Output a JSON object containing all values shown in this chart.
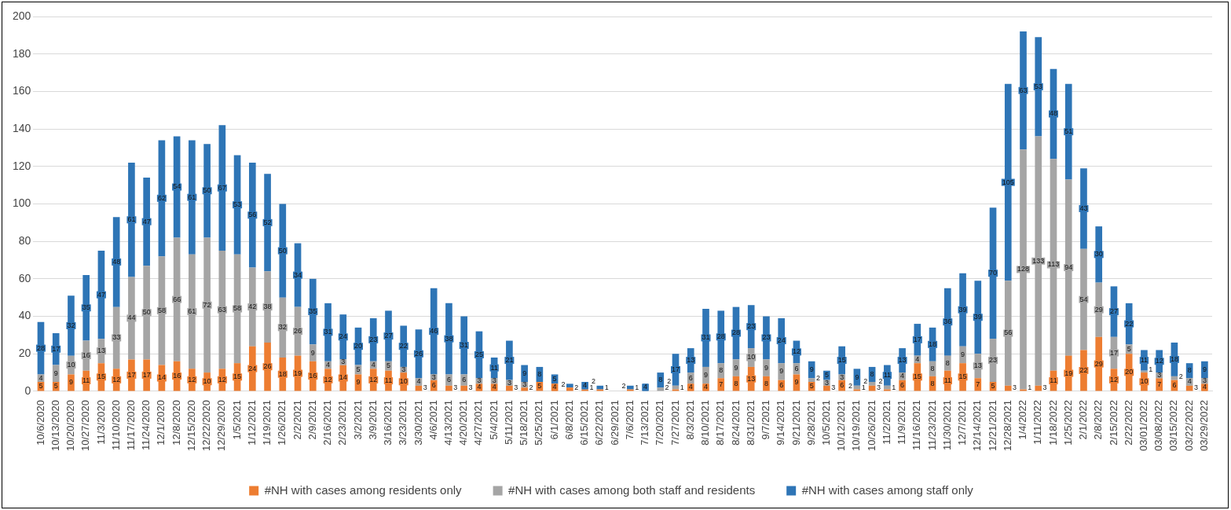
{
  "chart_data": {
    "type": "bar",
    "stacked": true,
    "categories": [
      "10/6/2020",
      "10/13/2020",
      "10/20/2020",
      "10/27/2020",
      "11/3/2020",
      "11/10/2020",
      "11/17/2020",
      "11/24/2020",
      "12/1/2020",
      "12/8/2020",
      "12/15/2020",
      "12/22/2020",
      "12/29/2020",
      "1/5/2021",
      "1/12/2021",
      "1/19/2021",
      "1/26/2021",
      "2/2/2021",
      "2/9/2021",
      "2/16/2021",
      "2/23/2021",
      "3/2/2021",
      "3/9/2021",
      "3/16/2021",
      "3/23/2021",
      "3/30/2021",
      "4/6/2021",
      "4/13/2021",
      "4/20/2021",
      "4/27/2021",
      "5/4/2021",
      "5/11/2021",
      "5/18/2021",
      "5/25/2021",
      "6/1/2021",
      "6/8/2021",
      "6/15/2021",
      "6/22/2021",
      "6/29/2021",
      "7/6/2021",
      "7/13/2021",
      "7/20/2021",
      "7/27/2021",
      "8/3/2021",
      "8/10/2021",
      "8/17/2021",
      "8/24/2021",
      "8/31/2021",
      "9/7/2021",
      "9/14/2021",
      "9/21/2021",
      "9/28/2021",
      "10/5/2021",
      "10/12/2021",
      "10/19/2021",
      "10/26/2021",
      "11/2/2021",
      "11/9/2021",
      "11/16/2021",
      "11/23/2021",
      "11/30/2021",
      "12/7/2021",
      "12/14/2021",
      "12/21/2021",
      "12/28/2021",
      "1/4/2022",
      "1/11/2022",
      "1/18/2022",
      "1/25/2022",
      "2/1/2022",
      "2/8/2022",
      "2/15/2022",
      "2/22/2022",
      "03/01/2022",
      "03/08/2022",
      "03/15/2022",
      "03/22/2022",
      "03/29/2022"
    ],
    "series": [
      {
        "name": "#NH with cases among residents only",
        "color": "#ed7d31",
        "values": [
          5,
          5,
          9,
          11,
          15,
          12,
          17,
          17,
          14,
          16,
          12,
          10,
          12,
          15,
          24,
          26,
          18,
          19,
          16,
          12,
          14,
          9,
          12,
          11,
          10,
          3,
          6,
          3,
          3,
          4,
          4,
          3,
          2,
          5,
          4,
          2,
          1,
          1,
          null,
          1,
          null,
          null,
          1,
          4,
          4,
          7,
          8,
          13,
          8,
          6,
          9,
          5,
          3,
          6,
          1,
          3,
          1,
          6,
          15,
          8,
          11,
          15,
          7,
          5,
          3,
          1,
          3,
          11,
          19,
          22,
          29,
          12,
          20,
          10,
          7,
          6,
          3,
          4
        ]
      },
      {
        "name": "#NH with cases among both staff and residents",
        "color": "#a5a5a5",
        "values": [
          4,
          9,
          10,
          16,
          13,
          33,
          44,
          50,
          58,
          66,
          61,
          72,
          63,
          58,
          42,
          38,
          32,
          26,
          9,
          4,
          3,
          5,
          4,
          5,
          3,
          4,
          3,
          6,
          6,
          3,
          3,
          3,
          3,
          null,
          null,
          null,
          null,
          null,
          null,
          null,
          null,
          2,
          2,
          6,
          9,
          8,
          9,
          10,
          9,
          9,
          6,
          2,
          3,
          3,
          2,
          2,
          2,
          4,
          4,
          8,
          8,
          9,
          13,
          23,
          56,
          128,
          133,
          113,
          94,
          54,
          29,
          17,
          5,
          1,
          3,
          2,
          4,
          3
        ]
      },
      {
        "name": "#NH with cases among staff only",
        "color": "#2e75b6",
        "values": [
          28,
          17,
          32,
          35,
          47,
          48,
          61,
          47,
          62,
          54,
          61,
          50,
          67,
          53,
          56,
          52,
          50,
          34,
          35,
          31,
          24,
          20,
          23,
          27,
          22,
          26,
          46,
          38,
          31,
          25,
          11,
          21,
          9,
          8,
          5,
          2,
          4,
          2,
          null,
          2,
          4,
          8,
          17,
          13,
          31,
          28,
          28,
          23,
          23,
          24,
          12,
          9,
          5,
          15,
          9,
          8,
          11,
          13,
          17,
          18,
          36,
          39,
          39,
          70,
          105,
          63,
          53,
          48,
          51,
          43,
          30,
          27,
          22,
          11,
          12,
          18,
          8,
          9
        ]
      }
    ],
    "ylim": [
      0,
      200
    ],
    "yticks": [
      0,
      20,
      40,
      60,
      80,
      100,
      120,
      140,
      160,
      180,
      200
    ],
    "grid": "y",
    "legend": "bottom",
    "data_labels": true
  }
}
